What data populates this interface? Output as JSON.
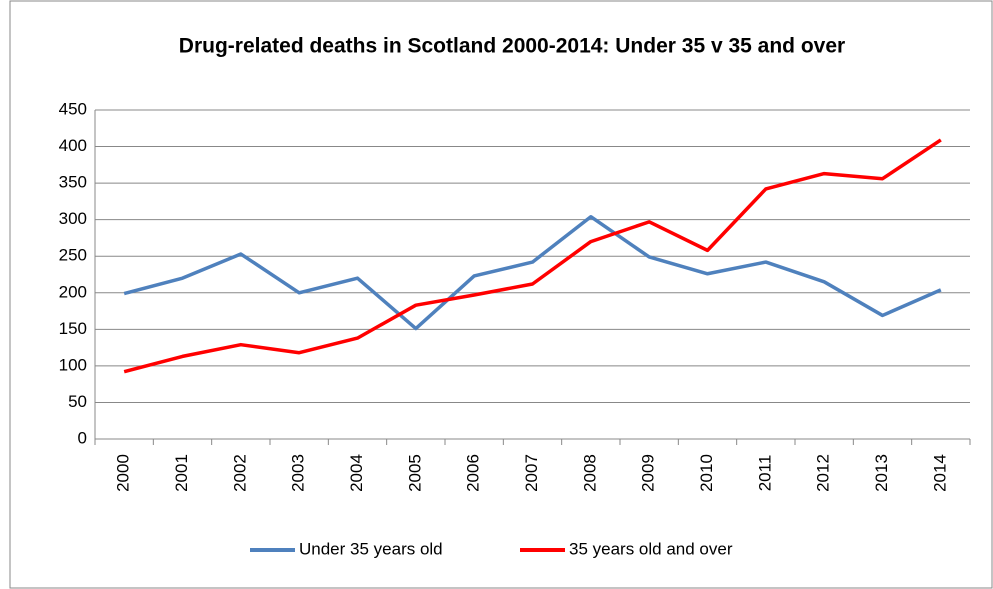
{
  "chart_data": {
    "type": "line",
    "title": "Drug-related deaths in Scotland 2000-2014: Under 35 v 35 and over",
    "categories": [
      "2000",
      "2001",
      "2002",
      "2003",
      "2004",
      "2005",
      "2006",
      "2007",
      "2008",
      "2009",
      "2010",
      "2011",
      "2012",
      "2013",
      "2014"
    ],
    "series": [
      {
        "name": "Under 35 years old",
        "color": "#4f81bd",
        "values": [
          199,
          220,
          253,
          200,
          220,
          151,
          223,
          242,
          304,
          249,
          226,
          242,
          215,
          169,
          204
        ]
      },
      {
        "name": "35 years old and over",
        "color": "#ff0000",
        "values": [
          92,
          113,
          129,
          118,
          138,
          183,
          197,
          212,
          270,
          297,
          258,
          342,
          363,
          356,
          409
        ]
      }
    ],
    "ylim": [
      0,
      450
    ],
    "yticks": [
      0,
      50,
      100,
      150,
      200,
      250,
      300,
      350,
      400,
      450
    ],
    "grid": true,
    "legend": "bottom"
  }
}
